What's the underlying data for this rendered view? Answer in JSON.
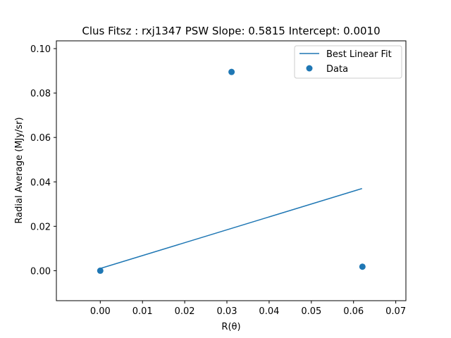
{
  "chart_data": {
    "type": "scatter",
    "title": "Clus Fitsz : rxj1347  PSW  Slope: 0.5815  Intercept: 0.0010",
    "xlabel": "R(θ)",
    "ylabel": "Radial Average (MJy/sr)",
    "xlim": [
      -0.0104,
      0.0724
    ],
    "ylim": [
      -0.0135,
      0.1035
    ],
    "xticks": [
      0.0,
      0.01,
      0.02,
      0.03,
      0.04,
      0.05,
      0.06,
      0.07
    ],
    "xtick_labels": [
      "0.00",
      "0.01",
      "0.02",
      "0.03",
      "0.04",
      "0.05",
      "0.06",
      "0.07"
    ],
    "yticks": [
      0.0,
      0.02,
      0.04,
      0.06,
      0.08,
      0.1
    ],
    "ytick_labels": [
      "0.00",
      "0.02",
      "0.04",
      "0.06",
      "0.08",
      "0.10"
    ],
    "grid": false,
    "legend_position": "top-right",
    "series": [
      {
        "name": "Best Linear Fit",
        "kind": "line",
        "color": "#1f77b4",
        "x": [
          0.0,
          0.062
        ],
        "y": [
          0.001,
          0.037
        ]
      },
      {
        "name": "Data",
        "kind": "scatter",
        "color": "#1f77b4",
        "x": [
          0.0,
          0.0311,
          0.0621
        ],
        "y": [
          0.0,
          0.0895,
          0.0018
        ]
      }
    ]
  }
}
